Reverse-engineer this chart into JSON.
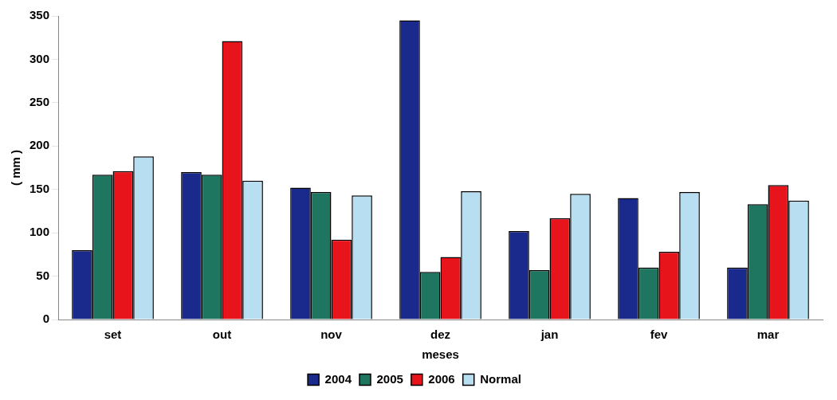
{
  "chart_data": {
    "type": "bar",
    "xlabel": "meses",
    "ylabel": "( mm )",
    "categories": [
      "set",
      "out",
      "nov",
      "dez",
      "jan",
      "fev",
      "mar"
    ],
    "series": [
      {
        "name": "2004",
        "color": "#1a2a8c",
        "values": [
          80,
          170,
          152,
          345,
          102,
          140,
          60
        ]
      },
      {
        "name": "2005",
        "color": "#1e7560",
        "values": [
          167,
          167,
          147,
          55,
          57,
          60,
          133
        ]
      },
      {
        "name": "2006",
        "color": "#e8141c",
        "values": [
          171,
          321,
          92,
          72,
          117,
          78,
          155
        ]
      },
      {
        "name": "Normal",
        "color": "#b8def2",
        "values": [
          188,
          160,
          143,
          148,
          145,
          147,
          137
        ]
      }
    ],
    "ylim": [
      0,
      350
    ],
    "yticks": [
      0,
      50,
      100,
      150,
      200,
      250,
      300,
      350
    ],
    "grid": false,
    "legend": "bottom"
  }
}
